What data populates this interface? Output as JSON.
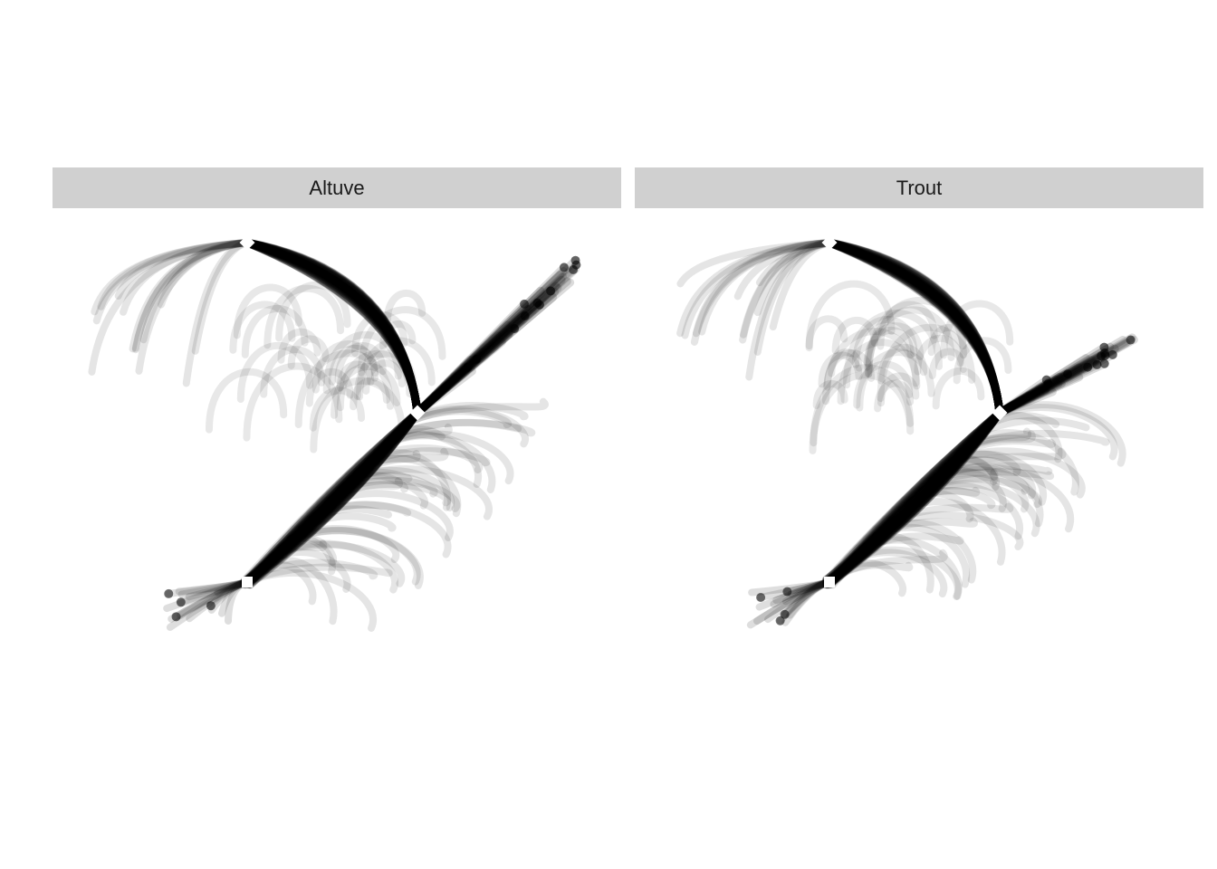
{
  "chart_data": {
    "type": "line",
    "facets": [
      {
        "label": "Altuve"
      },
      {
        "label": "Trout"
      }
    ],
    "title": "",
    "xlabel": "",
    "ylabel": "",
    "axes_visible": false,
    "grid": false,
    "legend": "none",
    "colors": {
      "trace": "#000000",
      "marker": "#ffffff",
      "strip": "#d0d0d0"
    }
  }
}
